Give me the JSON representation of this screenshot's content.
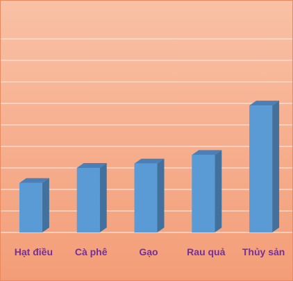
{
  "colors": {
    "bg_top": "#f9c1a6",
    "bg_bottom": "#f39d77",
    "bar_front": "#5b9bd5",
    "bar_side": "#41719c",
    "bar_top": "#4a7fb8",
    "label": "#7030a0",
    "grid": "#f8e3d9",
    "border": "#e8895e"
  },
  "chart_data": {
    "type": "bar",
    "categories": [
      "Hạt điều",
      "Cà phê",
      "Gạo",
      "Rau quả",
      "Thủy sản"
    ],
    "values": [
      2.3,
      3.0,
      3.2,
      3.6,
      5.9
    ],
    "title": "",
    "xlabel": "",
    "ylabel": "",
    "ylim": [
      0,
      10
    ],
    "grid": true,
    "three_d": true,
    "legend": "none"
  }
}
